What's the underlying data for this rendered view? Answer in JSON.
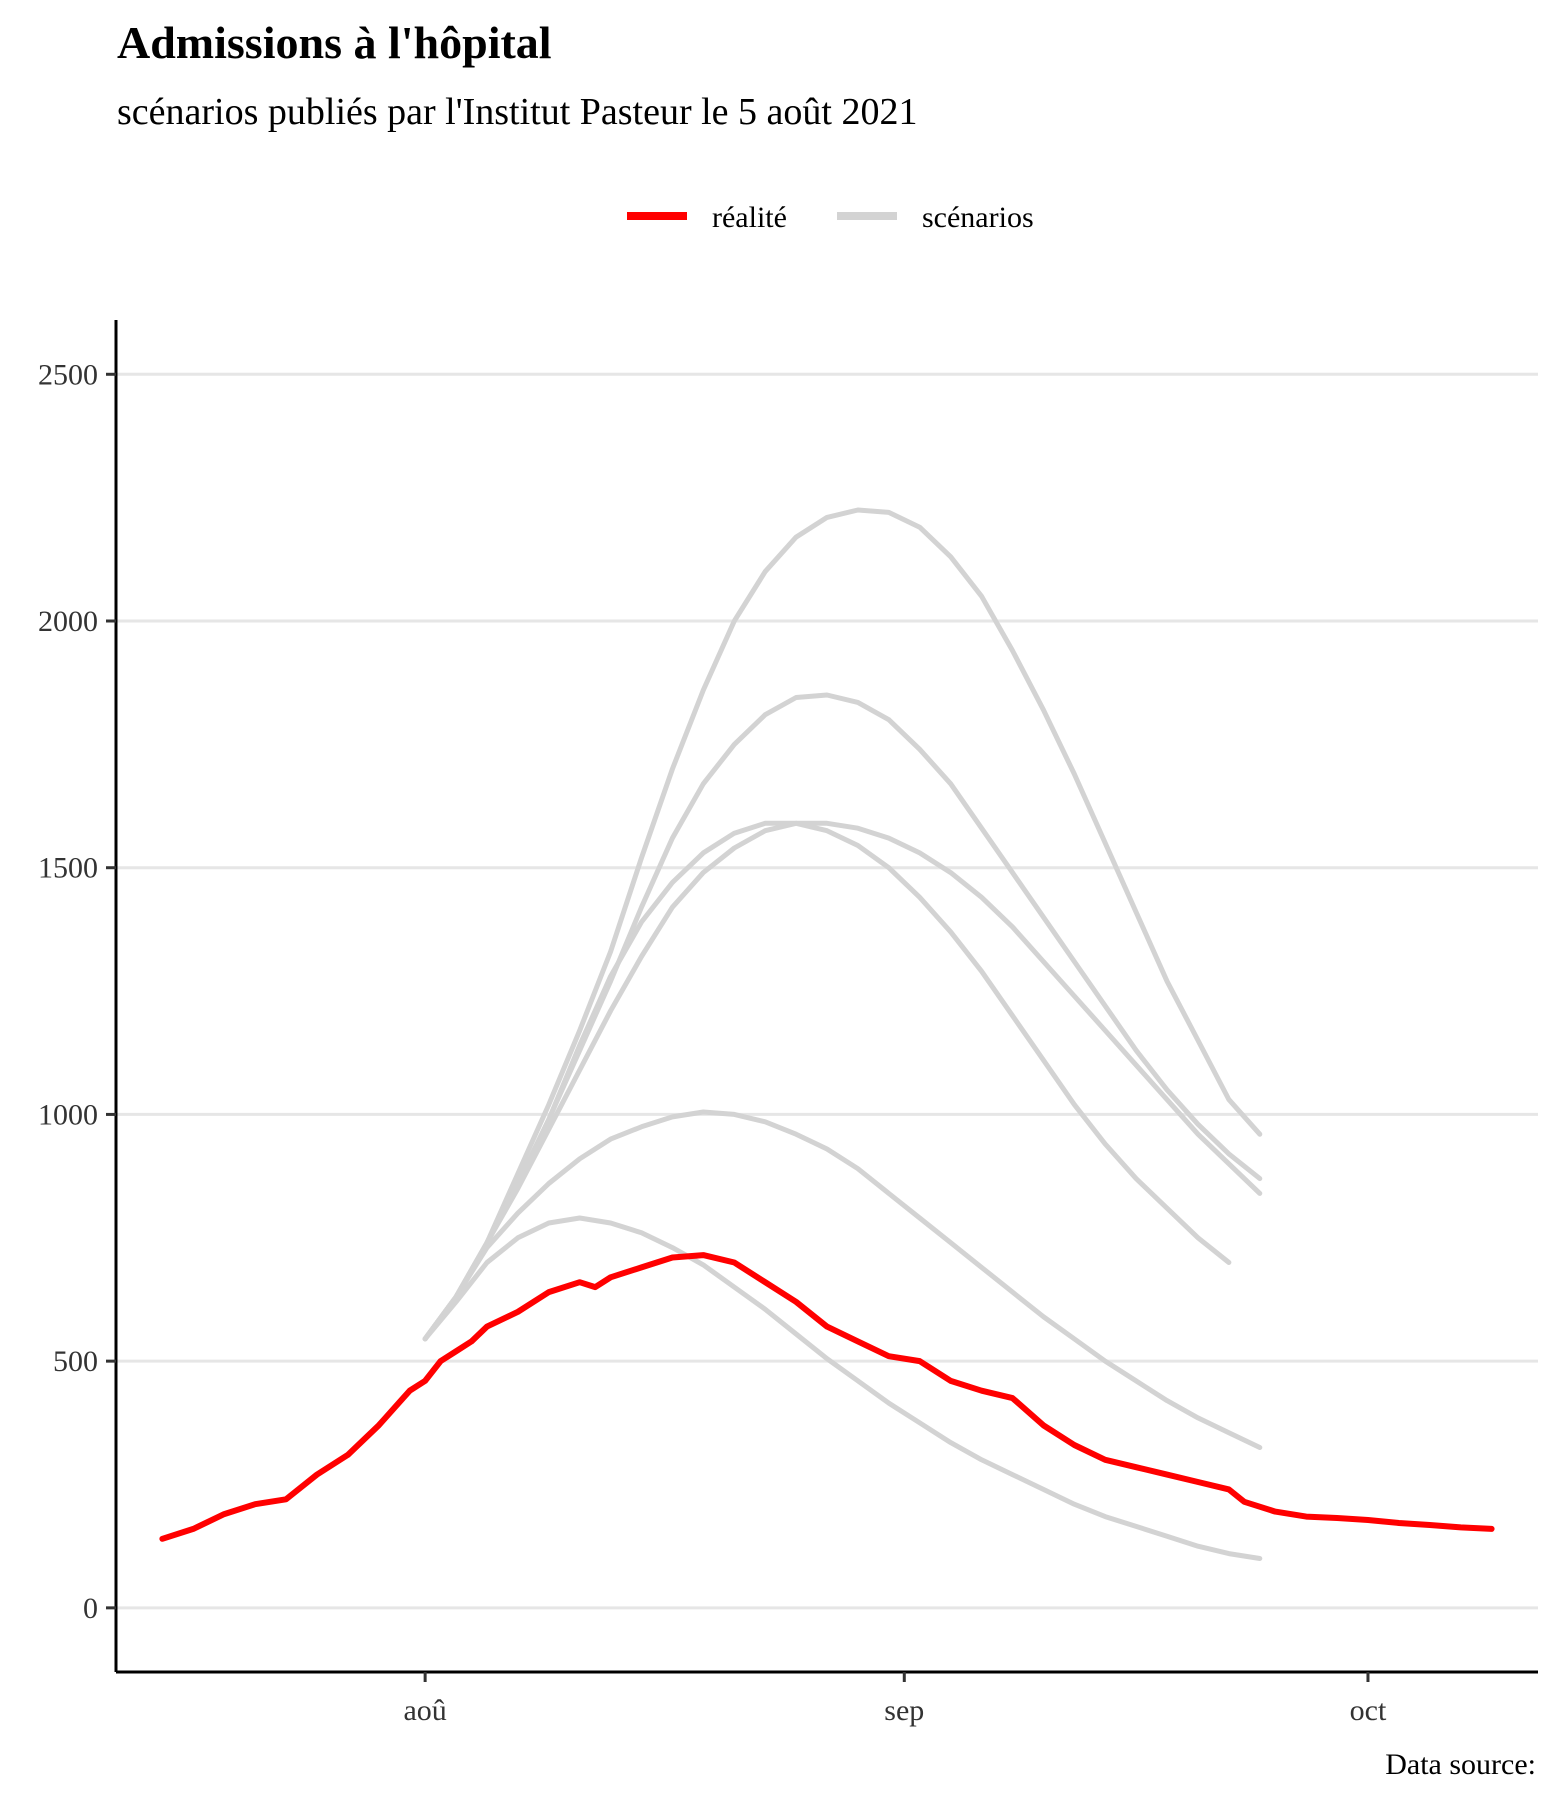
{
  "chart_data": {
    "type": "line",
    "title": "Admissions à l'hôpital",
    "subtitle": "scénarios publiés par l'Institut Pasteur le 5 août 2021",
    "caption": "Data source:",
    "legend": {
      "placement": "top",
      "entries": [
        {
          "label": "réalité",
          "color": "#ff0000"
        },
        {
          "label": "scénarios",
          "color": "#d3d3d3"
        }
      ]
    },
    "x_axis": {
      "type": "date",
      "range": [
        "2021-07-12",
        "2021-10-12"
      ],
      "ticks": [
        {
          "date": "2021-08-01",
          "label": "aoû"
        },
        {
          "date": "2021-09-01",
          "label": "sep"
        },
        {
          "date": "2021-10-01",
          "label": "oct"
        }
      ]
    },
    "y_axis": {
      "range": [
        -130,
        2610
      ],
      "ticks": [
        0,
        500,
        1000,
        1500,
        2000,
        2500
      ],
      "grid": true
    },
    "series": [
      {
        "name": "réalité",
        "color": "#ff0000",
        "points": [
          [
            "2021-07-15",
            140
          ],
          [
            "2021-07-17",
            160
          ],
          [
            "2021-07-19",
            190
          ],
          [
            "2021-07-21",
            210
          ],
          [
            "2021-07-23",
            220
          ],
          [
            "2021-07-25",
            270
          ],
          [
            "2021-07-27",
            310
          ],
          [
            "2021-07-29",
            370
          ],
          [
            "2021-07-31",
            440
          ],
          [
            "2021-08-01",
            460
          ],
          [
            "2021-08-02",
            500
          ],
          [
            "2021-08-03",
            520
          ],
          [
            "2021-08-04",
            540
          ],
          [
            "2021-08-05",
            570
          ],
          [
            "2021-08-07",
            600
          ],
          [
            "2021-08-09",
            640
          ],
          [
            "2021-08-11",
            660
          ],
          [
            "2021-08-12",
            650
          ],
          [
            "2021-08-13",
            670
          ],
          [
            "2021-08-15",
            690
          ],
          [
            "2021-08-17",
            710
          ],
          [
            "2021-08-19",
            715
          ],
          [
            "2021-08-21",
            700
          ],
          [
            "2021-08-23",
            660
          ],
          [
            "2021-08-25",
            620
          ],
          [
            "2021-08-27",
            570
          ],
          [
            "2021-08-29",
            540
          ],
          [
            "2021-08-31",
            510
          ],
          [
            "2021-09-02",
            500
          ],
          [
            "2021-09-04",
            460
          ],
          [
            "2021-09-06",
            440
          ],
          [
            "2021-09-08",
            425
          ],
          [
            "2021-09-10",
            370
          ],
          [
            "2021-09-12",
            330
          ],
          [
            "2021-09-14",
            300
          ],
          [
            "2021-09-16",
            285
          ],
          [
            "2021-09-18",
            270
          ],
          [
            "2021-09-20",
            255
          ],
          [
            "2021-09-22",
            240
          ],
          [
            "2021-09-23",
            215
          ],
          [
            "2021-09-25",
            195
          ],
          [
            "2021-09-27",
            185
          ],
          [
            "2021-09-29",
            182
          ],
          [
            "2021-10-01",
            178
          ],
          [
            "2021-10-03",
            172
          ],
          [
            "2021-10-05",
            168
          ],
          [
            "2021-10-07",
            163
          ],
          [
            "2021-10-09",
            160
          ]
        ]
      },
      {
        "name": "scénarios",
        "color": "#d3d3d3",
        "points": [
          [
            "2021-08-01",
            545
          ],
          [
            "2021-08-03",
            630
          ],
          [
            "2021-08-05",
            740
          ],
          [
            "2021-08-07",
            880
          ],
          [
            "2021-08-09",
            1020
          ],
          [
            "2021-08-11",
            1170
          ],
          [
            "2021-08-13",
            1330
          ],
          [
            "2021-08-15",
            1520
          ],
          [
            "2021-08-17",
            1700
          ],
          [
            "2021-08-19",
            1860
          ],
          [
            "2021-08-21",
            2000
          ],
          [
            "2021-08-23",
            2100
          ],
          [
            "2021-08-25",
            2170
          ],
          [
            "2021-08-27",
            2210
          ],
          [
            "2021-08-29",
            2225
          ],
          [
            "2021-08-31",
            2220
          ],
          [
            "2021-09-02",
            2190
          ],
          [
            "2021-09-04",
            2130
          ],
          [
            "2021-09-06",
            2050
          ],
          [
            "2021-09-08",
            1940
          ],
          [
            "2021-09-10",
            1820
          ],
          [
            "2021-09-12",
            1690
          ],
          [
            "2021-09-14",
            1550
          ],
          [
            "2021-09-16",
            1410
          ],
          [
            "2021-09-18",
            1270
          ],
          [
            "2021-09-20",
            1150
          ],
          [
            "2021-09-22",
            1030
          ],
          [
            "2021-09-24",
            960
          ]
        ]
      },
      {
        "name": "scénarios",
        "color": "#d3d3d3",
        "points": [
          [
            "2021-08-01",
            545
          ],
          [
            "2021-08-03",
            630
          ],
          [
            "2021-08-05",
            740
          ],
          [
            "2021-08-07",
            860
          ],
          [
            "2021-08-09",
            990
          ],
          [
            "2021-08-11",
            1130
          ],
          [
            "2021-08-13",
            1270
          ],
          [
            "2021-08-15",
            1420
          ],
          [
            "2021-08-17",
            1560
          ],
          [
            "2021-08-19",
            1670
          ],
          [
            "2021-08-21",
            1750
          ],
          [
            "2021-08-23",
            1810
          ],
          [
            "2021-08-25",
            1845
          ],
          [
            "2021-08-27",
            1850
          ],
          [
            "2021-08-29",
            1835
          ],
          [
            "2021-08-31",
            1800
          ],
          [
            "2021-09-02",
            1740
          ],
          [
            "2021-09-04",
            1670
          ],
          [
            "2021-09-06",
            1580
          ],
          [
            "2021-09-08",
            1490
          ],
          [
            "2021-09-10",
            1400
          ],
          [
            "2021-09-12",
            1310
          ],
          [
            "2021-09-14",
            1220
          ],
          [
            "2021-09-16",
            1130
          ],
          [
            "2021-09-18",
            1050
          ],
          [
            "2021-09-20",
            980
          ],
          [
            "2021-09-22",
            920
          ],
          [
            "2021-09-24",
            870
          ]
        ]
      },
      {
        "name": "scénarios",
        "color": "#d3d3d3",
        "points": [
          [
            "2021-08-01",
            545
          ],
          [
            "2021-08-03",
            630
          ],
          [
            "2021-08-05",
            740
          ],
          [
            "2021-08-07",
            850
          ],
          [
            "2021-08-09",
            970
          ],
          [
            "2021-08-11",
            1090
          ],
          [
            "2021-08-13",
            1210
          ],
          [
            "2021-08-15",
            1320
          ],
          [
            "2021-08-17",
            1420
          ],
          [
            "2021-08-19",
            1490
          ],
          [
            "2021-08-21",
            1540
          ],
          [
            "2021-08-23",
            1575
          ],
          [
            "2021-08-25",
            1590
          ],
          [
            "2021-08-27",
            1590
          ],
          [
            "2021-08-29",
            1580
          ],
          [
            "2021-08-31",
            1560
          ],
          [
            "2021-09-02",
            1530
          ],
          [
            "2021-09-04",
            1490
          ],
          [
            "2021-09-06",
            1440
          ],
          [
            "2021-09-08",
            1380
          ],
          [
            "2021-09-10",
            1310
          ],
          [
            "2021-09-12",
            1240
          ],
          [
            "2021-09-14",
            1170
          ],
          [
            "2021-09-16",
            1100
          ],
          [
            "2021-09-18",
            1030
          ],
          [
            "2021-09-20",
            960
          ],
          [
            "2021-09-22",
            900
          ],
          [
            "2021-09-24",
            840
          ]
        ]
      },
      {
        "name": "scénarios",
        "color": "#d3d3d3",
        "points": [
          [
            "2021-08-01",
            545
          ],
          [
            "2021-08-03",
            630
          ],
          [
            "2021-08-05",
            740
          ],
          [
            "2021-08-07",
            860
          ],
          [
            "2021-08-09",
            990
          ],
          [
            "2021-08-11",
            1140
          ],
          [
            "2021-08-13",
            1280
          ],
          [
            "2021-08-15",
            1390
          ],
          [
            "2021-08-17",
            1470
          ],
          [
            "2021-08-19",
            1530
          ],
          [
            "2021-08-21",
            1570
          ],
          [
            "2021-08-23",
            1590
          ],
          [
            "2021-08-25",
            1590
          ],
          [
            "2021-08-27",
            1575
          ],
          [
            "2021-08-29",
            1545
          ],
          [
            "2021-08-31",
            1500
          ],
          [
            "2021-09-02",
            1440
          ],
          [
            "2021-09-04",
            1370
          ],
          [
            "2021-09-06",
            1290
          ],
          [
            "2021-09-08",
            1200
          ],
          [
            "2021-09-10",
            1110
          ],
          [
            "2021-09-12",
            1020
          ],
          [
            "2021-09-14",
            940
          ],
          [
            "2021-09-16",
            870
          ],
          [
            "2021-09-18",
            810
          ],
          [
            "2021-09-20",
            750
          ],
          [
            "2021-09-22",
            700
          ]
        ]
      },
      {
        "name": "scénarios",
        "color": "#d3d3d3",
        "points": [
          [
            "2021-08-01",
            545
          ],
          [
            "2021-08-03",
            630
          ],
          [
            "2021-08-05",
            730
          ],
          [
            "2021-08-07",
            800
          ],
          [
            "2021-08-09",
            860
          ],
          [
            "2021-08-11",
            910
          ],
          [
            "2021-08-13",
            950
          ],
          [
            "2021-08-15",
            975
          ],
          [
            "2021-08-17",
            995
          ],
          [
            "2021-08-19",
            1005
          ],
          [
            "2021-08-21",
            1000
          ],
          [
            "2021-08-23",
            985
          ],
          [
            "2021-08-25",
            960
          ],
          [
            "2021-08-27",
            930
          ],
          [
            "2021-08-29",
            890
          ],
          [
            "2021-08-31",
            840
          ],
          [
            "2021-09-02",
            790
          ],
          [
            "2021-09-04",
            740
          ],
          [
            "2021-09-06",
            690
          ],
          [
            "2021-09-08",
            640
          ],
          [
            "2021-09-10",
            590
          ],
          [
            "2021-09-12",
            545
          ],
          [
            "2021-09-14",
            500
          ],
          [
            "2021-09-16",
            460
          ],
          [
            "2021-09-18",
            420
          ],
          [
            "2021-09-20",
            385
          ],
          [
            "2021-09-22",
            355
          ],
          [
            "2021-09-24",
            325
          ]
        ]
      },
      {
        "name": "scénarios",
        "color": "#d3d3d3",
        "points": [
          [
            "2021-08-01",
            545
          ],
          [
            "2021-08-03",
            620
          ],
          [
            "2021-08-05",
            700
          ],
          [
            "2021-08-07",
            750
          ],
          [
            "2021-08-09",
            780
          ],
          [
            "2021-08-11",
            790
          ],
          [
            "2021-08-13",
            780
          ],
          [
            "2021-08-15",
            760
          ],
          [
            "2021-08-17",
            730
          ],
          [
            "2021-08-19",
            695
          ],
          [
            "2021-08-21",
            650
          ],
          [
            "2021-08-23",
            605
          ],
          [
            "2021-08-25",
            555
          ],
          [
            "2021-08-27",
            505
          ],
          [
            "2021-08-29",
            460
          ],
          [
            "2021-08-31",
            415
          ],
          [
            "2021-09-02",
            375
          ],
          [
            "2021-09-04",
            335
          ],
          [
            "2021-09-06",
            300
          ],
          [
            "2021-09-08",
            270
          ],
          [
            "2021-09-10",
            240
          ],
          [
            "2021-09-12",
            210
          ],
          [
            "2021-09-14",
            185
          ],
          [
            "2021-09-16",
            165
          ],
          [
            "2021-09-18",
            145
          ],
          [
            "2021-09-20",
            125
          ],
          [
            "2021-09-22",
            110
          ],
          [
            "2021-09-24",
            100
          ]
        ]
      }
    ]
  }
}
